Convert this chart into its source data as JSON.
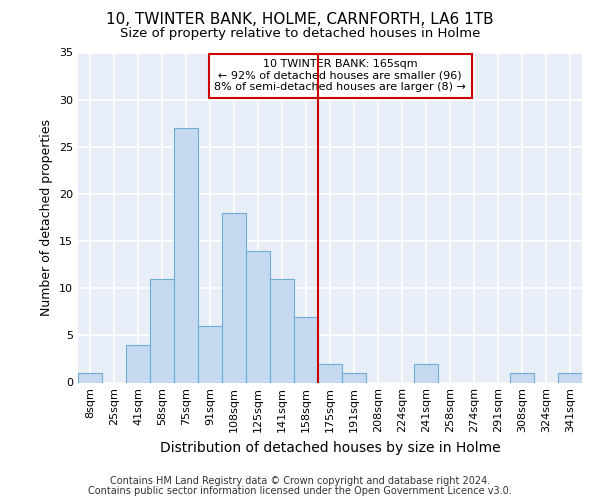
{
  "title1": "10, TWINTER BANK, HOLME, CARNFORTH, LA6 1TB",
  "title2": "Size of property relative to detached houses in Holme",
  "xlabel": "Distribution of detached houses by size in Holme",
  "ylabel": "Number of detached properties",
  "footnote1": "Contains HM Land Registry data © Crown copyright and database right 2024.",
  "footnote2": "Contains public sector information licensed under the Open Government Licence v3.0.",
  "bar_labels": [
    "8sqm",
    "25sqm",
    "41sqm",
    "58sqm",
    "75sqm",
    "91sqm",
    "108sqm",
    "125sqm",
    "141sqm",
    "158sqm",
    "175sqm",
    "191sqm",
    "208sqm",
    "224sqm",
    "241sqm",
    "258sqm",
    "274sqm",
    "291sqm",
    "308sqm",
    "324sqm",
    "341sqm"
  ],
  "bar_values": [
    1,
    0,
    4,
    11,
    27,
    6,
    18,
    14,
    11,
    7,
    2,
    1,
    0,
    0,
    2,
    0,
    0,
    0,
    1,
    0,
    1
  ],
  "bar_color": "#c5d9f0",
  "bar_edge_color": "#6baed6",
  "bg_color": "#e8eef8",
  "grid_color": "#ffffff",
  "fig_bg_color": "#ffffff",
  "vline_x": 9.5,
  "vline_color": "#cc0000",
  "annotation_text_line1": "10 TWINTER BANK: 165sqm",
  "annotation_text_line2": "← 92% of detached houses are smaller (96)",
  "annotation_text_line3": "8% of semi-detached houses are larger (8) →",
  "ylim": [
    0,
    35
  ],
  "yticks": [
    0,
    5,
    10,
    15,
    20,
    25,
    30,
    35
  ],
  "title_fontsize": 11,
  "subtitle_fontsize": 9.5,
  "ylabel_fontsize": 9,
  "xlabel_fontsize": 10,
  "tick_fontsize": 8,
  "annotation_fontsize": 8,
  "footnote_fontsize": 7
}
